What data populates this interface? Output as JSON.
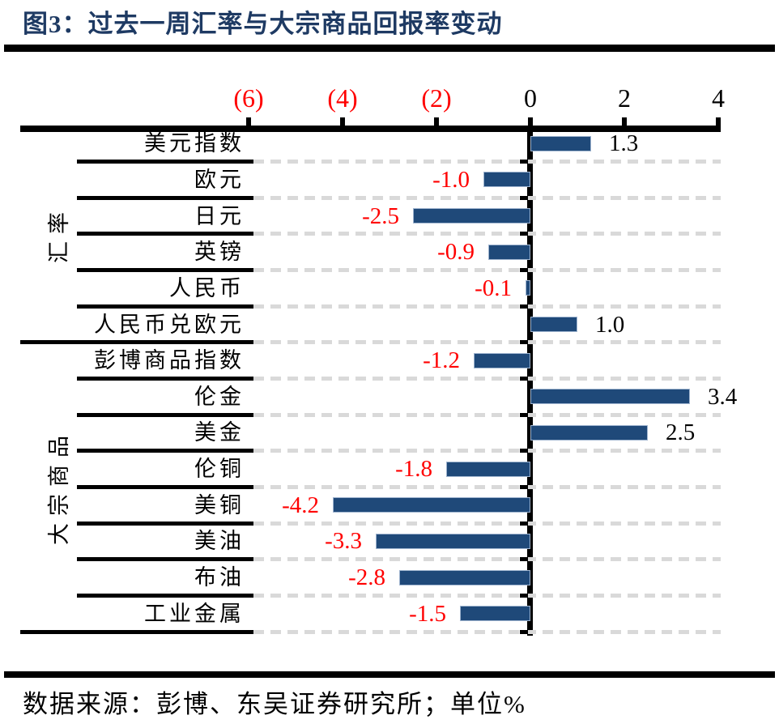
{
  "title": "图3：过去一周汇率与大宗商品回报率变动",
  "footer": "数据来源：彭博、东吴证券研究所；单位%",
  "unit": "%",
  "colors": {
    "title": "#1E3A63",
    "bar": "#1F4979",
    "bar_border": "#9FB4CF",
    "negative_label": "#FF0000",
    "positive_label": "#000000",
    "dash_gray": "#D9D9D9",
    "axis_black": "#000000"
  },
  "chart_data": {
    "type": "bar",
    "orientation": "horizontal",
    "title": "过去一周汇率与大宗商品回报率变动",
    "value_axis": {
      "position": "top",
      "range": [
        -6,
        4
      ],
      "ticks": [
        {
          "label": "(6)",
          "value": -6,
          "color": "#FF0000"
        },
        {
          "label": "(4)",
          "value": -4,
          "color": "#FF0000"
        },
        {
          "label": "(2)",
          "value": -2,
          "color": "#FF0000"
        },
        {
          "label": "0",
          "value": 0,
          "color": "#000000"
        },
        {
          "label": "2",
          "value": 2,
          "color": "#000000"
        },
        {
          "label": "4",
          "value": 4,
          "color": "#000000"
        }
      ]
    },
    "grid": "dashed-horizontal",
    "groups": [
      {
        "label": "汇率",
        "rows": [
          {
            "label": "美元指数",
            "value": 1.3
          },
          {
            "label": "欧元",
            "value": -1.0
          },
          {
            "label": "日元",
            "value": -2.5
          },
          {
            "label": "英镑",
            "value": -0.9
          },
          {
            "label": "人民币",
            "value": -0.1
          },
          {
            "label": "人民币兑欧元",
            "value": 1.0
          }
        ]
      },
      {
        "label": "大宗商品",
        "rows": [
          {
            "label": "彭博商品指数",
            "value": -1.2
          },
          {
            "label": "伦金",
            "value": 3.4
          },
          {
            "label": "美金",
            "value": 2.5
          },
          {
            "label": "伦铜",
            "value": -1.8
          },
          {
            "label": "美铜",
            "value": -4.2
          },
          {
            "label": "美油",
            "value": -3.3
          },
          {
            "label": "布油",
            "value": -2.8
          },
          {
            "label": "工业金属",
            "value": -1.5
          }
        ]
      }
    ]
  }
}
